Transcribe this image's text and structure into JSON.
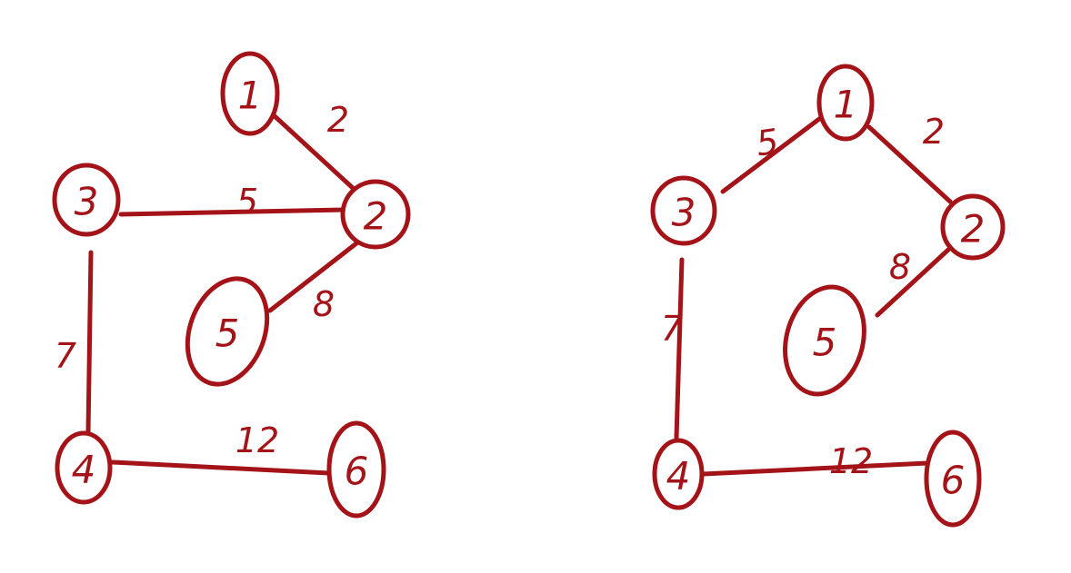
{
  "colors": {
    "ink": "#a31317",
    "background": "#ffffff"
  },
  "graphs": [
    {
      "nodes": [
        {
          "id": "1",
          "label": "1"
        },
        {
          "id": "2",
          "label": "2"
        },
        {
          "id": "3",
          "label": "3"
        },
        {
          "id": "4",
          "label": "4"
        },
        {
          "id": "5",
          "label": "5"
        },
        {
          "id": "6",
          "label": "6"
        }
      ],
      "edges": [
        {
          "from": "1",
          "to": "2",
          "weight": "2"
        },
        {
          "from": "3",
          "to": "2",
          "weight": "5"
        },
        {
          "from": "5",
          "to": "2",
          "weight": "8"
        },
        {
          "from": "3",
          "to": "4",
          "weight": "7"
        },
        {
          "from": "4",
          "to": "6",
          "weight": "12"
        }
      ]
    },
    {
      "nodes": [
        {
          "id": "1",
          "label": "1"
        },
        {
          "id": "2",
          "label": "2"
        },
        {
          "id": "3",
          "label": "3"
        },
        {
          "id": "4",
          "label": "4"
        },
        {
          "id": "5",
          "label": "5"
        },
        {
          "id": "6",
          "label": "6"
        }
      ],
      "edges": [
        {
          "from": "3",
          "to": "1",
          "weight": "5"
        },
        {
          "from": "1",
          "to": "2",
          "weight": "2"
        },
        {
          "from": "5",
          "to": "2",
          "weight": "8"
        },
        {
          "from": "3",
          "to": "4",
          "weight": "7"
        },
        {
          "from": "4",
          "to": "6",
          "weight": "12"
        }
      ]
    }
  ]
}
